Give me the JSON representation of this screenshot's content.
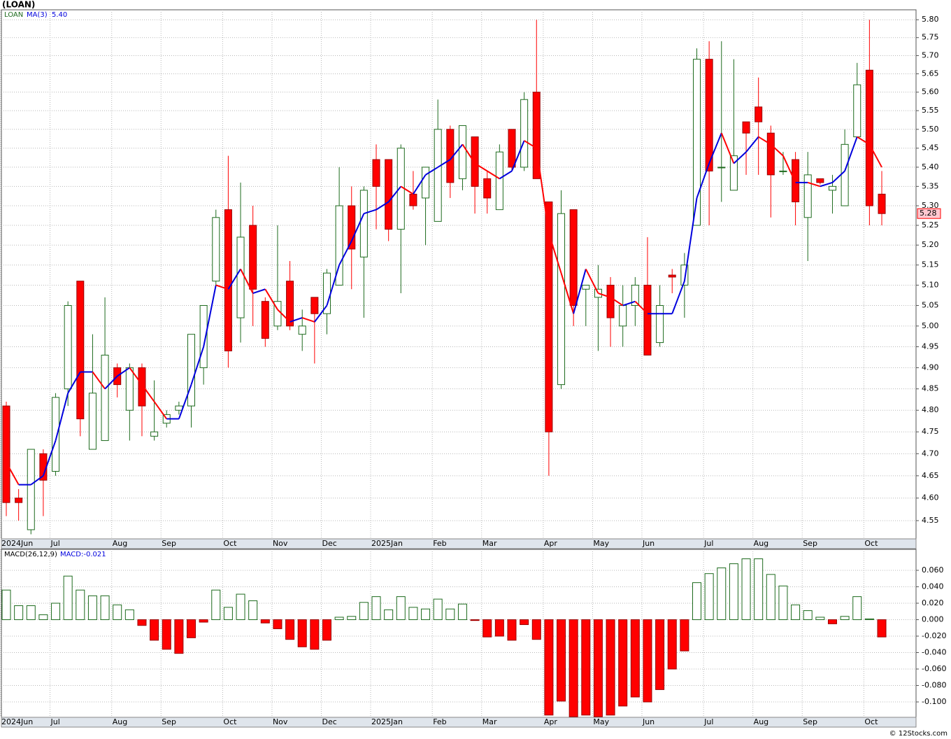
{
  "chart_data": [
    {
      "type": "candlestick",
      "title": "(LOAN)",
      "legend_value": "5.40",
      "categories": [
        "2024Jun",
        null,
        null,
        null,
        "Jul",
        null,
        null,
        null,
        null,
        "Aug",
        null,
        null,
        null,
        "Sep",
        null,
        null,
        null,
        null,
        "Oct",
        null,
        null,
        null,
        "Nov",
        null,
        null,
        null,
        "Dec",
        null,
        null,
        null,
        "2025Jan",
        null,
        null,
        null,
        null,
        "Feb",
        null,
        null,
        null,
        "Mar",
        null,
        null,
        null,
        null,
        "Apr",
        null,
        null,
        null,
        "May",
        null,
        null,
        null,
        "Jun",
        null,
        null,
        null,
        null,
        "Jul",
        null,
        null,
        null,
        "Aug",
        null,
        null,
        null,
        "Sep",
        null,
        null,
        null,
        null,
        "Oct",
        null
      ],
      "series": [
        {
          "name": "LOAN",
          "up_color": "#1e6b1e",
          "down_color": "#ff0000",
          "open": [
            4.81,
            4.6,
            4.53,
            4.7,
            4.66,
            4.85,
            5.11,
            4.71,
            4.73,
            4.9,
            4.8,
            4.9,
            4.74,
            4.77,
            4.8,
            4.81,
            4.9,
            5.11,
            5.29,
            5.02,
            5.25,
            5.06,
            5.0,
            5.11,
            4.98,
            5.07,
            5.03,
            5.1,
            5.3,
            5.17,
            5.42,
            5.42,
            5.24,
            5.33,
            5.32,
            5.26,
            5.5,
            5.37,
            5.48,
            5.37,
            5.29,
            5.5,
            5.4,
            5.6,
            5.31,
            4.86,
            5.29,
            5.09,
            5.07,
            5.1,
            5.0,
            5.05,
            5.1,
            4.96,
            5.125,
            5.1,
            5.25,
            5.69,
            5.4,
            5.34,
            5.52,
            5.56,
            5.49,
            5.39,
            5.42,
            5.27,
            5.37,
            5.34,
            5.3,
            5.48,
            5.66,
            5.33
          ],
          "high": [
            4.82,
            4.62,
            4.71,
            4.71,
            4.84,
            5.06,
            5.11,
            4.98,
            5.07,
            4.91,
            4.91,
            4.91,
            4.87,
            4.8,
            4.82,
            4.98,
            5.05,
            5.29,
            5.43,
            5.36,
            5.3,
            5.07,
            5.25,
            5.16,
            5.04,
            5.07,
            5.14,
            5.4,
            5.35,
            5.35,
            5.46,
            5.42,
            5.46,
            5.39,
            5.4,
            5.58,
            5.51,
            5.51,
            5.48,
            5.39,
            5.46,
            5.5,
            5.6,
            5.8,
            5.31,
            5.34,
            5.29,
            5.1,
            5.15,
            5.12,
            5.1,
            5.12,
            5.22,
            5.1,
            5.14,
            5.18,
            5.72,
            5.74,
            5.74,
            5.69,
            5.52,
            5.64,
            5.51,
            5.44,
            5.44,
            5.44,
            5.37,
            5.38,
            5.5,
            5.68,
            5.8,
            5.39
          ],
          "low": [
            4.56,
            4.55,
            4.52,
            4.56,
            4.65,
            4.81,
            4.74,
            4.71,
            4.73,
            4.83,
            4.73,
            4.74,
            4.73,
            4.76,
            4.79,
            4.76,
            4.86,
            5.1,
            4.9,
            4.96,
            5.0,
            4.95,
            4.99,
            4.99,
            4.94,
            4.91,
            4.98,
            5.1,
            5.09,
            5.02,
            5.24,
            5.21,
            5.08,
            5.29,
            5.2,
            5.26,
            5.32,
            5.34,
            5.28,
            5.28,
            5.29,
            5.39,
            5.39,
            5.37,
            4.65,
            4.85,
            5.0,
            5.0,
            4.94,
            4.95,
            4.95,
            5.0,
            4.93,
            4.95,
            5.08,
            5.02,
            5.25,
            5.25,
            5.31,
            5.34,
            5.38,
            5.38,
            5.27,
            5.38,
            5.25,
            5.16,
            5.355,
            5.28,
            5.3,
            5.48,
            5.25,
            5.25
          ],
          "close": [
            4.59,
            4.59,
            4.71,
            4.64,
            4.83,
            5.05,
            4.78,
            4.84,
            4.93,
            4.86,
            4.9,
            4.81,
            4.75,
            4.79,
            4.81,
            4.98,
            5.05,
            5.27,
            4.94,
            5.22,
            5.09,
            4.97,
            5.06,
            5.0,
            5.0,
            5.03,
            5.13,
            5.3,
            5.19,
            5.34,
            5.35,
            5.24,
            5.45,
            5.3,
            5.4,
            5.5,
            5.36,
            5.51,
            5.35,
            5.32,
            5.44,
            5.4,
            5.58,
            5.37,
            4.75,
            5.28,
            5.05,
            5.1,
            5.09,
            5.02,
            5.05,
            5.1,
            4.93,
            5.05,
            5.12,
            5.15,
            5.69,
            5.39,
            5.4,
            5.43,
            5.49,
            5.52,
            5.38,
            5.39,
            5.31,
            5.38,
            5.36,
            5.35,
            5.46,
            5.62,
            5.3,
            5.28
          ]
        },
        {
          "name": "MA(3)",
          "up_color": "#0000dd",
          "down_color": "#ff0000",
          "values": [
            4.68,
            4.63,
            4.63,
            4.65,
            4.73,
            4.84,
            4.89,
            4.89,
            4.85,
            4.88,
            4.9,
            4.86,
            4.82,
            4.78,
            4.78,
            4.86,
            4.95,
            5.1,
            5.09,
            5.14,
            5.08,
            5.09,
            5.04,
            5.01,
            5.02,
            5.01,
            5.05,
            5.15,
            5.21,
            5.28,
            5.29,
            5.31,
            5.35,
            5.33,
            5.38,
            5.4,
            5.42,
            5.46,
            5.41,
            5.39,
            5.37,
            5.39,
            5.47,
            5.45,
            5.23,
            5.13,
            5.03,
            5.14,
            5.08,
            5.07,
            5.05,
            5.06,
            5.03,
            5.03,
            5.03,
            5.11,
            5.32,
            5.41,
            5.49,
            5.41,
            5.44,
            5.48,
            5.46,
            5.43,
            5.36,
            5.36,
            5.35,
            5.36,
            5.39,
            5.48,
            5.46,
            5.4
          ]
        }
      ],
      "ylim": [
        4.51,
        5.828
      ],
      "log_scale": true,
      "grid": true,
      "yticks": [
        {
          "value": 5.8,
          "label": "5.80"
        },
        5.75,
        {
          "value": 5.7,
          "label": "5.70"
        },
        5.65,
        {
          "value": 5.6,
          "label": "5.60"
        },
        5.55,
        {
          "value": 5.5,
          "label": "5.50"
        },
        5.45,
        {
          "value": 5.4,
          "label": "5.40"
        },
        5.35,
        {
          "value": 5.3,
          "label": "5.30"
        },
        5.25,
        {
          "value": 5.2,
          "label": "5.20"
        },
        5.15,
        {
          "value": 5.1,
          "label": "5.10"
        },
        5.05,
        {
          "value": 5,
          "label": "5.00"
        },
        4.95,
        {
          "value": 4.9,
          "label": "4.90"
        },
        4.85,
        {
          "value": 4.8,
          "label": "4.80"
        },
        4.75,
        {
          "value": 4.7,
          "label": "4.70"
        },
        4.65,
        {
          "value": 4.6,
          "label": "4.60"
        },
        4.55
      ]
    },
    {
      "type": "bar",
      "title": "MACD(26,12,9)",
      "legend_value": "MACD:-0.021",
      "categories": [
        "2024Jun",
        null,
        null,
        null,
        "Jul",
        null,
        null,
        null,
        null,
        "Aug",
        null,
        null,
        null,
        "Sep",
        null,
        null,
        null,
        null,
        "Oct",
        null,
        null,
        null,
        "Nov",
        null,
        null,
        null,
        "Dec",
        null,
        null,
        null,
        "2025Jan",
        null,
        null,
        null,
        null,
        "Feb",
        null,
        null,
        null,
        "Mar",
        null,
        null,
        null,
        null,
        "Apr",
        null,
        null,
        null,
        "May",
        null,
        null,
        null,
        "Jun",
        null,
        null,
        null,
        null,
        "Jul",
        null,
        null,
        null,
        "Aug",
        null,
        null,
        null,
        "Sep",
        null,
        null,
        null,
        null,
        "Oct",
        null
      ],
      "up_color": "#1e6b1e",
      "down_color": "#ff0000",
      "values": [
        0.036,
        0.017,
        0.017,
        0.006,
        0.02,
        0.053,
        0.036,
        0.029,
        0.029,
        0.018,
        0.012,
        -0.007,
        -0.025,
        -0.036,
        -0.041,
        -0.022,
        -0.003,
        0.036,
        0.015,
        0.031,
        0.023,
        -0.004,
        -0.011,
        -0.024,
        -0.033,
        -0.036,
        -0.025,
        0.003,
        0.004,
        0.021,
        0.028,
        0.012,
        0.028,
        0.015,
        0.013,
        0.025,
        0.013,
        0.019,
        -0.001,
        -0.021,
        -0.02,
        -0.025,
        -0.006,
        -0.024,
        -0.116,
        -0.099,
        -0.118,
        -0.116,
        -0.118,
        -0.116,
        -0.105,
        -0.094,
        -0.1,
        -0.085,
        -0.06,
        -0.038,
        0.045,
        0.056,
        0.063,
        0.068,
        0.074,
        0.074,
        0.055,
        0.041,
        0.018,
        0.011,
        0.003,
        -0.005,
        0.004,
        0.028,
        0.001,
        -0.021
      ],
      "ylim": [
        -0.1187,
        0.0855
      ],
      "grid": true,
      "yticks": [
        {
          "value": 0.06,
          "label": "0.060"
        },
        {
          "value": 0.04,
          "label": "0.040"
        },
        {
          "value": 0.02,
          "label": "0.020"
        },
        {
          "value": 0,
          "label": "0.000"
        },
        {
          "value": -0.02,
          "label": "-0.020"
        },
        {
          "value": -0.04,
          "label": "-0.040"
        },
        {
          "value": -0.06,
          "label": "-0.060"
        },
        {
          "value": -0.08,
          "label": "-0.080"
        },
        {
          "value": -0.1,
          "label": "-0.100"
        }
      ]
    }
  ],
  "footer": "© 12Stocks.com"
}
